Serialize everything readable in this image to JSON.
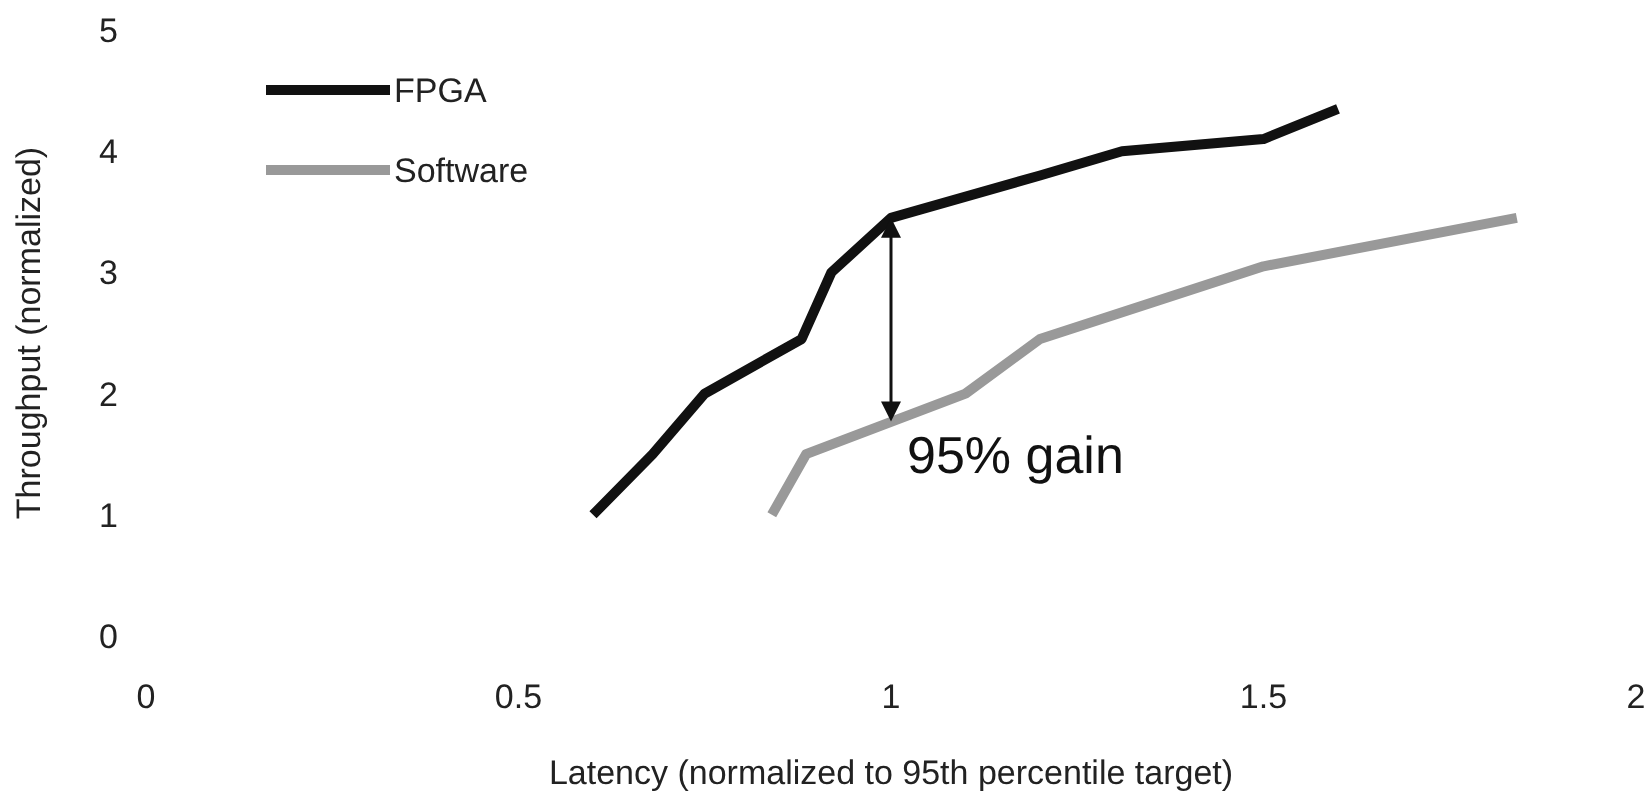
{
  "chart_data": {
    "type": "line",
    "xlabel": "Latency (normalized to 95th percentile target)",
    "ylabel": "Throughput (normalized)",
    "xlim": [
      0,
      2
    ],
    "xticks": [
      0,
      0.5,
      1,
      1.5,
      2
    ],
    "ylim": [
      0,
      5
    ],
    "yticks": [
      0,
      1,
      2,
      3,
      4,
      5
    ],
    "grid": false,
    "legend": "top left",
    "marker": "none",
    "line_style": "solid",
    "series": [
      {
        "name": "FPGA",
        "color": "#111111",
        "x": [
          0.6,
          0.68,
          0.75,
          0.88,
          0.92,
          1.0,
          1.2,
          1.31,
          1.5,
          1.6
        ],
        "values": [
          1,
          1.5,
          2,
          2.45,
          3,
          3.45,
          3.8,
          4.0,
          4.1,
          4.35
        ]
      },
      {
        "name": "Software",
        "color": "#999999",
        "x": [
          0.84,
          0.886,
          1.1,
          1.2,
          1.5,
          1.84
        ],
        "values": [
          1,
          1.5,
          2,
          2.45,
          3.05,
          3.45
        ]
      }
    ],
    "annotations": [
      {
        "text": "95% gain",
        "x": 1,
        "y": 1.77
      }
    ]
  }
}
